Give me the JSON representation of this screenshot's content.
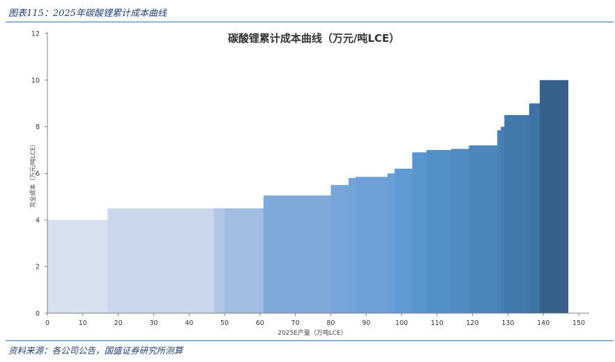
{
  "figure_caption": "图表115：2025年碳酸锂累计成本曲线",
  "source_note": "资料来源：各公司公告，国盛证券研究所测算",
  "chart_data": {
    "type": "bar",
    "subtype": "cost-curve",
    "title": "碳酸锂累计成本曲线（万元/吨LCE）",
    "xlabel": "2025E产量（万吨LCE）",
    "ylabel": "完全成本（万元/吨LCE）",
    "xlim": [
      0,
      150
    ],
    "ylim": [
      0,
      12
    ],
    "x_ticks": [
      0,
      10,
      20,
      30,
      40,
      50,
      60,
      70,
      80,
      90,
      100,
      110,
      120,
      130,
      140,
      150
    ],
    "y_ticks": [
      0,
      2,
      4,
      6,
      8,
      10,
      12
    ],
    "grid": false,
    "legend": "none",
    "segments": [
      {
        "x0": 0,
        "x1": 17,
        "cost": 4.0,
        "color": "#d6e1f0"
      },
      {
        "x0": 17,
        "x1": 47,
        "cost": 4.5,
        "color": "#cbd8eb"
      },
      {
        "x0": 47,
        "x1": 50,
        "cost": 4.5,
        "color": "#b2c7e5"
      },
      {
        "x0": 50,
        "x1": 61,
        "cost": 4.5,
        "color": "#a1bde2"
      },
      {
        "x0": 61,
        "x1": 80,
        "cost": 5.05,
        "color": "#7fa9d9"
      },
      {
        "x0": 80,
        "x1": 85,
        "cost": 5.5,
        "color": "#77a5d8"
      },
      {
        "x0": 85,
        "x1": 87,
        "cost": 5.8,
        "color": "#73a3d7"
      },
      {
        "x0": 87,
        "x1": 96,
        "cost": 5.85,
        "color": "#6ea0d7"
      },
      {
        "x0": 96,
        "x1": 98,
        "cost": 6.0,
        "color": "#6a9ed6"
      },
      {
        "x0": 98,
        "x1": 103,
        "cost": 6.2,
        "color": "#6099d4"
      },
      {
        "x0": 103,
        "x1": 107,
        "cost": 6.9,
        "color": "#5996cf"
      },
      {
        "x0": 107,
        "x1": 114,
        "cost": 7.0,
        "color": "#5290c8"
      },
      {
        "x0": 114,
        "x1": 119,
        "cost": 7.05,
        "color": "#4f8cc2"
      },
      {
        "x0": 119,
        "x1": 127,
        "cost": 7.2,
        "color": "#4b86bc"
      },
      {
        "x0": 127,
        "x1": 128,
        "cost": 7.85,
        "color": "#4882b8"
      },
      {
        "x0": 128,
        "x1": 129,
        "cost": 8.0,
        "color": "#467fb4"
      },
      {
        "x0": 129,
        "x1": 136,
        "cost": 8.5,
        "color": "#4279ad"
      },
      {
        "x0": 136,
        "x1": 139,
        "cost": 9.0,
        "color": "#3d72a5"
      },
      {
        "x0": 139,
        "x1": 147,
        "cost": 10.0,
        "color": "#365f89"
      }
    ]
  }
}
